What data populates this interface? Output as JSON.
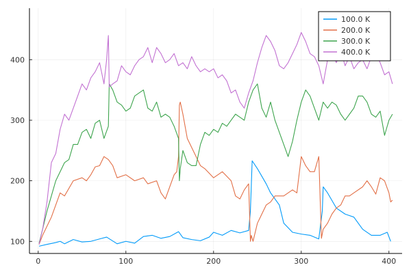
{
  "chart_data": {
    "type": "line",
    "title": "",
    "xlabel": "",
    "ylabel": "",
    "xlim": [
      -10,
      415
    ],
    "ylim": [
      80,
      485
    ],
    "x_ticks": [
      0,
      100,
      200,
      300,
      400
    ],
    "y_ticks": [
      100,
      200,
      300,
      400
    ],
    "grid": true,
    "legend_position": "top-right",
    "series": [
      {
        "name": "100.0 K",
        "color": "#009af9",
        "points": [
          [
            1,
            92
          ],
          [
            10,
            95
          ],
          [
            20,
            98
          ],
          [
            25,
            100
          ],
          [
            30,
            96
          ],
          [
            40,
            103
          ],
          [
            50,
            99
          ],
          [
            60,
            100
          ],
          [
            70,
            104
          ],
          [
            78,
            107
          ],
          [
            90,
            96
          ],
          [
            100,
            100
          ],
          [
            110,
            97
          ],
          [
            120,
            108
          ],
          [
            130,
            110
          ],
          [
            140,
            105
          ],
          [
            150,
            108
          ],
          [
            160,
            116
          ],
          [
            165,
            106
          ],
          [
            175,
            103
          ],
          [
            185,
            101
          ],
          [
            195,
            107
          ],
          [
            200,
            115
          ],
          [
            210,
            110
          ],
          [
            220,
            118
          ],
          [
            230,
            114
          ],
          [
            240,
            118
          ],
          [
            242,
            150
          ],
          [
            244,
            233
          ],
          [
            250,
            220
          ],
          [
            260,
            195
          ],
          [
            265,
            180
          ],
          [
            270,
            170
          ],
          [
            275,
            160
          ],
          [
            280,
            130
          ],
          [
            290,
            115
          ],
          [
            300,
            112
          ],
          [
            310,
            110
          ],
          [
            320,
            104
          ],
          [
            324,
            150
          ],
          [
            325,
            190
          ],
          [
            330,
            180
          ],
          [
            340,
            155
          ],
          [
            350,
            145
          ],
          [
            360,
            140
          ],
          [
            370,
            120
          ],
          [
            380,
            110
          ],
          [
            390,
            110
          ],
          [
            398,
            115
          ],
          [
            402,
            100
          ]
        ]
      },
      {
        "name": "200.0 K",
        "color": "#e26f46",
        "points": [
          [
            1,
            95
          ],
          [
            5,
            110
          ],
          [
            10,
            125
          ],
          [
            15,
            140
          ],
          [
            20,
            160
          ],
          [
            25,
            180
          ],
          [
            30,
            175
          ],
          [
            40,
            200
          ],
          [
            50,
            205
          ],
          [
            55,
            200
          ],
          [
            60,
            210
          ],
          [
            65,
            223
          ],
          [
            70,
            225
          ],
          [
            75,
            240
          ],
          [
            80,
            235
          ],
          [
            85,
            225
          ],
          [
            90,
            205
          ],
          [
            100,
            210
          ],
          [
            110,
            200
          ],
          [
            120,
            205
          ],
          [
            125,
            195
          ],
          [
            135,
            200
          ],
          [
            140,
            180
          ],
          [
            145,
            170
          ],
          [
            150,
            190
          ],
          [
            155,
            210
          ],
          [
            158,
            215
          ],
          [
            160,
            240
          ],
          [
            161,
            325
          ],
          [
            162,
            330
          ],
          [
            165,
            310
          ],
          [
            170,
            270
          ],
          [
            175,
            255
          ],
          [
            180,
            240
          ],
          [
            185,
            225
          ],
          [
            190,
            220
          ],
          [
            200,
            205
          ],
          [
            210,
            215
          ],
          [
            220,
            200
          ],
          [
            225,
            175
          ],
          [
            230,
            170
          ],
          [
            235,
            185
          ],
          [
            240,
            195
          ],
          [
            242,
            100
          ],
          [
            243,
            110
          ],
          [
            245,
            100
          ],
          [
            250,
            130
          ],
          [
            255,
            145
          ],
          [
            260,
            160
          ],
          [
            265,
            165
          ],
          [
            270,
            175
          ],
          [
            280,
            175
          ],
          [
            290,
            185
          ],
          [
            295,
            180
          ],
          [
            300,
            240
          ],
          [
            305,
            225
          ],
          [
            310,
            215
          ],
          [
            315,
            215
          ],
          [
            320,
            240
          ],
          [
            323,
            105
          ],
          [
            325,
            120
          ],
          [
            330,
            130
          ],
          [
            335,
            145
          ],
          [
            340,
            155
          ],
          [
            345,
            160
          ],
          [
            350,
            175
          ],
          [
            355,
            175
          ],
          [
            360,
            180
          ],
          [
            370,
            190
          ],
          [
            375,
            200
          ],
          [
            380,
            190
          ],
          [
            385,
            178
          ],
          [
            390,
            205
          ],
          [
            395,
            200
          ],
          [
            400,
            180
          ],
          [
            402,
            165
          ],
          [
            404,
            168
          ]
        ]
      },
      {
        "name": "300.0 K",
        "color": "#3da44d",
        "points": [
          [
            1,
            97
          ],
          [
            5,
            120
          ],
          [
            10,
            150
          ],
          [
            15,
            175
          ],
          [
            20,
            200
          ],
          [
            25,
            215
          ],
          [
            30,
            230
          ],
          [
            35,
            235
          ],
          [
            40,
            260
          ],
          [
            45,
            260
          ],
          [
            50,
            280
          ],
          [
            55,
            285
          ],
          [
            60,
            270
          ],
          [
            65,
            295
          ],
          [
            70,
            300
          ],
          [
            75,
            270
          ],
          [
            80,
            290
          ],
          [
            81,
            360
          ],
          [
            85,
            350
          ],
          [
            90,
            330
          ],
          [
            95,
            325
          ],
          [
            100,
            315
          ],
          [
            105,
            320
          ],
          [
            110,
            340
          ],
          [
            115,
            345
          ],
          [
            120,
            350
          ],
          [
            125,
            320
          ],
          [
            130,
            315
          ],
          [
            135,
            330
          ],
          [
            140,
            305
          ],
          [
            145,
            310
          ],
          [
            150,
            305
          ],
          [
            155,
            290
          ],
          [
            160,
            270
          ],
          [
            161,
            200
          ],
          [
            162,
            220
          ],
          [
            165,
            250
          ],
          [
            170,
            230
          ],
          [
            175,
            225
          ],
          [
            180,
            225
          ],
          [
            185,
            260
          ],
          [
            190,
            280
          ],
          [
            195,
            275
          ],
          [
            200,
            285
          ],
          [
            205,
            280
          ],
          [
            210,
            295
          ],
          [
            215,
            290
          ],
          [
            220,
            300
          ],
          [
            225,
            310
          ],
          [
            230,
            305
          ],
          [
            235,
            300
          ],
          [
            240,
            330
          ],
          [
            245,
            350
          ],
          [
            250,
            360
          ],
          [
            255,
            320
          ],
          [
            260,
            305
          ],
          [
            265,
            330
          ],
          [
            270,
            300
          ],
          [
            275,
            280
          ],
          [
            280,
            260
          ],
          [
            285,
            240
          ],
          [
            290,
            265
          ],
          [
            295,
            300
          ],
          [
            300,
            330
          ],
          [
            305,
            350
          ],
          [
            310,
            340
          ],
          [
            315,
            320
          ],
          [
            320,
            300
          ],
          [
            325,
            330
          ],
          [
            330,
            320
          ],
          [
            335,
            330
          ],
          [
            340,
            325
          ],
          [
            345,
            310
          ],
          [
            350,
            300
          ],
          [
            355,
            310
          ],
          [
            360,
            320
          ],
          [
            365,
            340
          ],
          [
            370,
            340
          ],
          [
            375,
            330
          ],
          [
            380,
            310
          ],
          [
            385,
            305
          ],
          [
            390,
            315
          ],
          [
            395,
            275
          ],
          [
            400,
            300
          ],
          [
            404,
            310
          ]
        ]
      },
      {
        "name": "400.0 K",
        "color": "#c271d2",
        "points": [
          [
            1,
            95
          ],
          [
            5,
            120
          ],
          [
            10,
            165
          ],
          [
            15,
            230
          ],
          [
            20,
            245
          ],
          [
            25,
            285
          ],
          [
            30,
            310
          ],
          [
            35,
            300
          ],
          [
            40,
            320
          ],
          [
            45,
            340
          ],
          [
            50,
            360
          ],
          [
            55,
            350
          ],
          [
            60,
            370
          ],
          [
            65,
            380
          ],
          [
            70,
            395
          ],
          [
            75,
            360
          ],
          [
            78,
            400
          ],
          [
            80,
            440
          ],
          [
            81,
            355
          ],
          [
            85,
            360
          ],
          [
            90,
            365
          ],
          [
            95,
            390
          ],
          [
            100,
            380
          ],
          [
            105,
            375
          ],
          [
            110,
            390
          ],
          [
            115,
            400
          ],
          [
            120,
            405
          ],
          [
            125,
            420
          ],
          [
            130,
            395
          ],
          [
            135,
            420
          ],
          [
            140,
            410
          ],
          [
            145,
            395
          ],
          [
            150,
            400
          ],
          [
            155,
            410
          ],
          [
            160,
            390
          ],
          [
            165,
            395
          ],
          [
            170,
            385
          ],
          [
            175,
            405
          ],
          [
            180,
            390
          ],
          [
            185,
            380
          ],
          [
            190,
            385
          ],
          [
            195,
            380
          ],
          [
            200,
            385
          ],
          [
            205,
            370
          ],
          [
            210,
            375
          ],
          [
            215,
            365
          ],
          [
            220,
            345
          ],
          [
            225,
            350
          ],
          [
            230,
            330
          ],
          [
            235,
            320
          ],
          [
            240,
            345
          ],
          [
            245,
            365
          ],
          [
            250,
            395
          ],
          [
            255,
            420
          ],
          [
            260,
            440
          ],
          [
            265,
            430
          ],
          [
            270,
            415
          ],
          [
            275,
            390
          ],
          [
            280,
            385
          ],
          [
            285,
            395
          ],
          [
            290,
            410
          ],
          [
            295,
            425
          ],
          [
            300,
            445
          ],
          [
            305,
            430
          ],
          [
            310,
            410
          ],
          [
            315,
            405
          ],
          [
            320,
            390
          ],
          [
            325,
            360
          ],
          [
            330,
            400
          ],
          [
            335,
            410
          ],
          [
            340,
            395
          ],
          [
            345,
            415
          ],
          [
            350,
            390
          ],
          [
            355,
            405
          ],
          [
            360,
            385
          ],
          [
            365,
            395
          ],
          [
            370,
            400
          ],
          [
            375,
            385
          ],
          [
            380,
            405
          ],
          [
            385,
            410
          ],
          [
            390,
            395
          ],
          [
            395,
            375
          ],
          [
            400,
            380
          ],
          [
            404,
            360
          ]
        ]
      }
    ]
  }
}
